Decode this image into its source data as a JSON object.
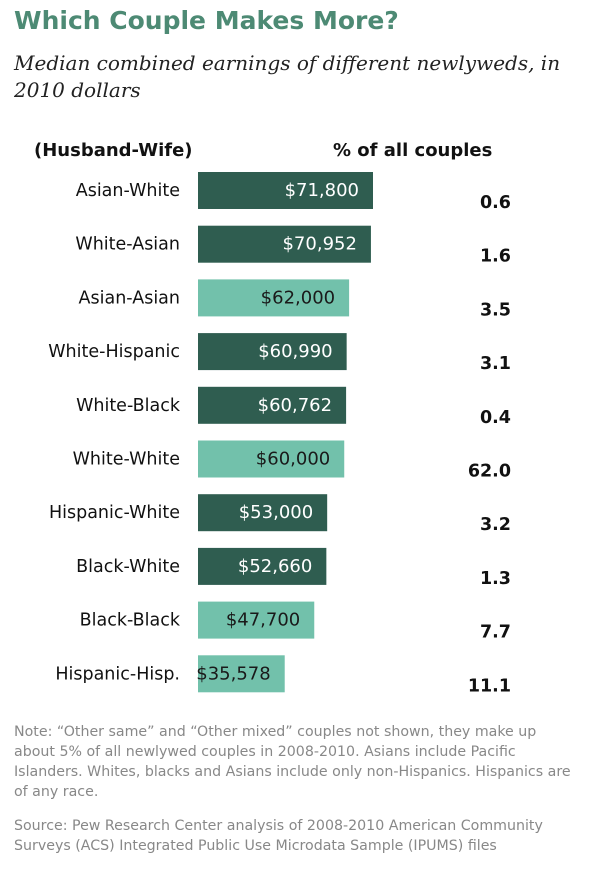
{
  "header": {
    "title": "Which Couple Makes More?",
    "subtitle": "Median combined earnings of different newlyweds, in 2010 dollars"
  },
  "chart_data": {
    "type": "bar",
    "orientation": "horizontal",
    "category_header": "(Husband-Wife)",
    "share_header": "% of all couples",
    "categories": [
      "Asian-White",
      "White-Asian",
      "Asian-Asian",
      "White-Hispanic",
      "White-Black",
      "White-White",
      "Hispanic-White",
      "Black-White",
      "Black-Black",
      "Hispanic-Hisp."
    ],
    "values": [
      71800,
      70952,
      62000,
      60990,
      60762,
      60000,
      53000,
      52660,
      47700,
      35578
    ],
    "value_labels": [
      "$71,800",
      "$70,952",
      "$62,000",
      "$60,990",
      "$60,762",
      "$60,000",
      "$53,000",
      "$52,660",
      "$47,700",
      "$35,578"
    ],
    "share_values": [
      0.6,
      1.6,
      3.5,
      3.1,
      0.4,
      62.0,
      3.2,
      1.3,
      7.7,
      11.1
    ],
    "share_labels": [
      "0.6",
      "1.6",
      "3.5",
      "3.1",
      "0.4",
      "62.0",
      "3.2",
      "1.3",
      "7.7",
      "11.1"
    ],
    "bar_kind": [
      "mixed",
      "mixed",
      "same",
      "mixed",
      "mixed",
      "same",
      "mixed",
      "mixed",
      "same",
      "same"
    ],
    "colors": {
      "mixed": "#2f5d50",
      "same": "#72c1ab",
      "label_on_mixed": "#ffffff",
      "label_on_same": "#1a1a1a"
    },
    "grid": false
  },
  "footer": {
    "note": "Note: “Other same” and “Other mixed” couples not shown, they make up about 5% of all newlywed couples in 2008-2010. Asians include Pacific Islanders. Whites, blacks and Asians include only non-Hispanics. Hispanics are of any race.",
    "source": "Source: Pew Research Center analysis of 2008-2010 American Community Surveys (ACS) Integrated Public Use Microdata Sample (IPUMS) files"
  }
}
